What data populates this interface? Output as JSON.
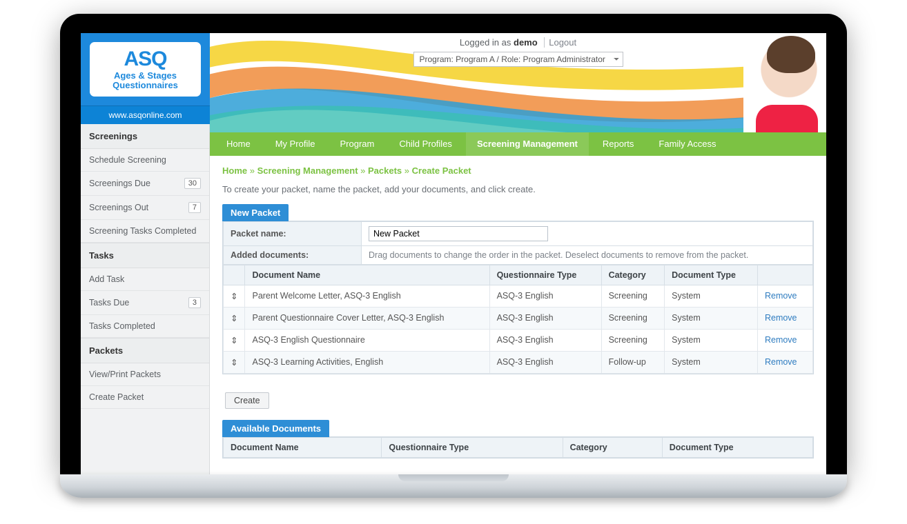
{
  "logo": {
    "title": "ASQ",
    "subtitle1": "Ages & Stages",
    "subtitle2": "Questionnaires",
    "url": "www.asqonline.com"
  },
  "header": {
    "logged_in_prefix": "Logged in as ",
    "username": "demo",
    "logout": "Logout",
    "program_select": "Program: Program A / Role: Program Administrator"
  },
  "nav": {
    "items": [
      "Home",
      "My Profile",
      "Program",
      "Child Profiles",
      "Screening Management",
      "Reports",
      "Family Access"
    ],
    "active_index": 4
  },
  "sidebar": {
    "sections": [
      {
        "heading": "Screenings",
        "items": [
          {
            "label": "Schedule Screening"
          },
          {
            "label": "Screenings Due",
            "badge": "30"
          },
          {
            "label": "Screenings Out",
            "badge": "7"
          },
          {
            "label": "Screening Tasks Completed"
          }
        ]
      },
      {
        "heading": "Tasks",
        "items": [
          {
            "label": "Add Task"
          },
          {
            "label": "Tasks Due",
            "badge": "3"
          },
          {
            "label": "Tasks Completed"
          }
        ]
      },
      {
        "heading": "Packets",
        "items": [
          {
            "label": "View/Print Packets"
          },
          {
            "label": "Create Packet"
          }
        ]
      }
    ]
  },
  "breadcrumbs": {
    "sep": " » ",
    "items": [
      "Home",
      "Screening Management",
      "Packets",
      "Create Packet"
    ]
  },
  "intro": "To create your packet, name the packet, add your documents, and click create.",
  "new_packet": {
    "panel_title": "New Packet",
    "name_label": "Packet name:",
    "name_value": "New Packet",
    "added_label": "Added documents:",
    "added_hint": "Drag documents to change the order in the packet. Deselect documents to remove from the packet.",
    "columns": [
      "Document Name",
      "Questionnaire Type",
      "Category",
      "Document Type",
      ""
    ],
    "remove_label": "Remove",
    "rows": [
      {
        "name": "Parent Welcome Letter, ASQ-3 English",
        "qtype": "ASQ-3 English",
        "category": "Screening",
        "dtype": "System"
      },
      {
        "name": "Parent Questionnaire Cover Letter, ASQ-3 English",
        "qtype": "ASQ-3 English",
        "category": "Screening",
        "dtype": "System"
      },
      {
        "name": "ASQ-3 English Questionnaire",
        "qtype": "ASQ-3 English",
        "category": "Screening",
        "dtype": "System"
      },
      {
        "name": "ASQ-3 Learning Activities, English",
        "qtype": "ASQ-3 English",
        "category": "Follow-up",
        "dtype": "System"
      }
    ],
    "create_btn": "Create"
  },
  "available": {
    "panel_title": "Available Documents",
    "columns": [
      "Document Name",
      "Questionnaire Type",
      "Category",
      "Document Type"
    ]
  },
  "colors": {
    "brand_blue": "#1d89dc",
    "nav_green": "#7cc243",
    "accent_orange": "#f08c3c",
    "accent_yellow": "#f5d331",
    "accent_teal": "#3bbfb3",
    "link": "#2e7cc0"
  }
}
